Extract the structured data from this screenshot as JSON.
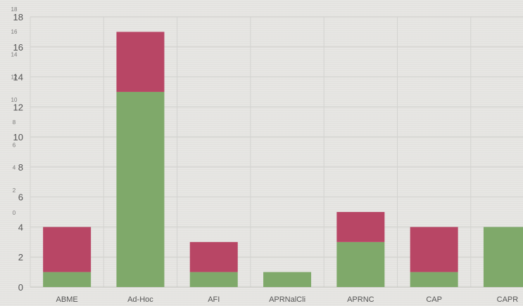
{
  "chart_data": {
    "type": "bar",
    "stacked": true,
    "categories": [
      "ABME",
      "Ad-Hoc",
      "AFI",
      "APRNalCli",
      "APRNC",
      "CAP",
      "CAPR"
    ],
    "series": [
      {
        "color": "#7fa96a",
        "values": [
          1,
          13,
          1,
          1,
          3,
          1,
          4
        ]
      },
      {
        "color": "#b84665",
        "values": [
          3,
          4,
          2,
          0,
          2,
          3,
          0
        ]
      }
    ],
    "ylim": [
      0,
      18
    ],
    "yticks": [
      0,
      2,
      4,
      6,
      8,
      10,
      12,
      14,
      16,
      18
    ],
    "ghost_yticks": [
      0,
      2,
      4,
      6,
      8,
      10,
      12,
      14,
      16,
      18
    ],
    "grid": true,
    "xlabel": "",
    "ylabel": ""
  }
}
